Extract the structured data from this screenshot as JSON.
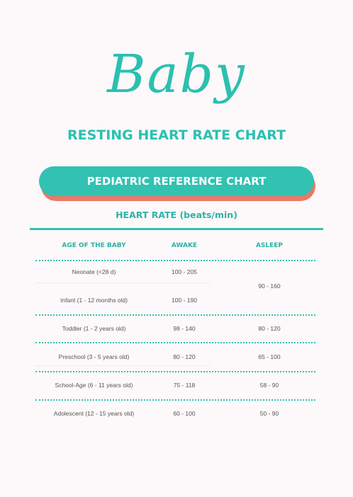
{
  "header": {
    "script_title": "Baby",
    "title": "RESTING HEART RATE CHART"
  },
  "banner": {
    "label": "PEDIATRIC REFERENCE CHART"
  },
  "table": {
    "caption": "HEART RATE (beats/min)",
    "columns": [
      "AGE OF THE BABY",
      "AWAKE",
      "ASLEEP"
    ],
    "rows": [
      {
        "age": "Neonate (<28 d)",
        "awake": "100 - 205"
      },
      {
        "age": "Infant (1 - 12 months old)",
        "awake": "100 - 190"
      },
      {
        "age": "Toddler (1 - 2 years old)",
        "awake": "98 - 140",
        "asleep": "80 - 120"
      },
      {
        "age": "Preschool (3 - 5 years old)",
        "awake": "80 - 120",
        "asleep": "65 - 100"
      },
      {
        "age": "School-Age (6 - 11 years old)",
        "awake": "75 - 118",
        "asleep": "58 - 90"
      },
      {
        "age": "Adolescent (12 - 15 years old)",
        "awake": "60 - 100",
        "asleep": "50 - 90"
      }
    ],
    "merged_asleep": "90 - 160"
  },
  "colors": {
    "accent": "#31c2b2",
    "banner_shadow": "#e97a66",
    "background": "#fdf8f9"
  }
}
